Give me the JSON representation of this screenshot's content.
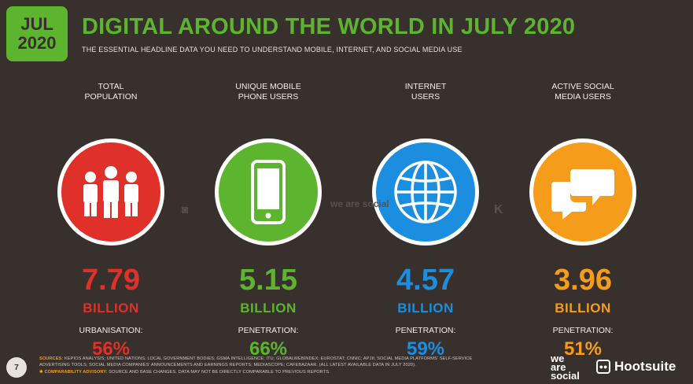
{
  "badge": {
    "month": "JUL",
    "year": "2020"
  },
  "title": "DIGITAL AROUND THE WORLD IN JULY 2020",
  "subtitle": "THE ESSENTIAL HEADLINE DATA YOU NEED TO UNDERSTAND MOBILE, INTERNET, AND SOCIAL MEDIA USE",
  "stats": [
    {
      "label_line1": "TOTAL",
      "label_line2": "POPULATION",
      "icon": "people-icon",
      "color": "#e0302a",
      "value": "7.79",
      "unit": "BILLION",
      "sub_label": "URBANISATION:",
      "sub_value": "56%"
    },
    {
      "label_line1": "UNIQUE MOBILE",
      "label_line2": "PHONE USERS",
      "icon": "mobile-phone-icon",
      "color": "#5db42f",
      "value": "5.15",
      "unit": "BILLION",
      "sub_label": "PENETRATION:",
      "sub_value": "66%"
    },
    {
      "label_line1": "INTERNET",
      "label_line2": "USERS",
      "icon": "globe-icon",
      "color": "#1b8ee0",
      "value": "4.57",
      "unit": "BILLION",
      "sub_label": "PENETRATION:",
      "sub_value": "59%"
    },
    {
      "label_line1": "ACTIVE SOCIAL",
      "label_line2": "MEDIA USERS",
      "icon": "speech-bubbles-icon",
      "color": "#f59c1a",
      "value": "3.96",
      "unit": "BILLION",
      "sub_label": "PENETRATION:",
      "sub_value": "51%"
    }
  ],
  "watermarks": {
    "we_are_social": "we are social"
  },
  "footer": {
    "page_number": "7",
    "sources_label": "SOURCES:",
    "sources_text": "KEPIOS ANALYSIS; UNITED NATIONS; LOCAL GOVERNMENT BODIES; GSMA INTELLIGENCE; ITU; GLOBALWEBINDEX; EUROSTAT; CNNIC; APJII; SOCIAL MEDIA PLATFORMS' SELF-SERVICE ADVERTISING TOOLS; SOCIAL MEDIA COMPANIES' ANNOUNCEMENTS AND EARNINGS REPORTS; MEDIASCOPE; CAFEBAZAAR. (ALL LATEST AVAILABLE DATA IN JULY 2020).",
    "advisory_label": "✱ COMPARABILITY ADVISORY:",
    "advisory_text": "SOURCE AND BASE CHANGES. DATA MAY NOT BE DIRECTLY COMPARABLE TO PREVIOUS REPORTS.",
    "logo_we": "we",
    "logo_are": "are",
    "logo_social": "social",
    "hootsuite": "Hootsuite"
  }
}
